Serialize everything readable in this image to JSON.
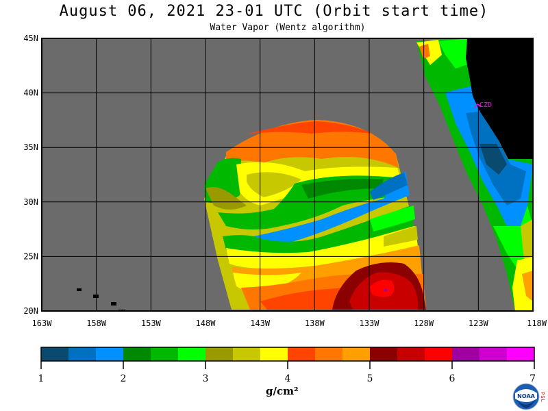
{
  "header": {
    "title": "August 06, 2021  23-01 UTC  (Orbit start time)",
    "subtitle": "Water Vapor (Wentz algorithm)"
  },
  "map": {
    "lat_labels": [
      "45N",
      "40N",
      "35N",
      "30N",
      "25N",
      "20N"
    ],
    "lon_labels": [
      "163W",
      "158W",
      "153W",
      "148W",
      "143W",
      "138W",
      "133W",
      "128W",
      "123W",
      "118W"
    ],
    "lat_range": [
      20,
      45
    ],
    "lon_range": [
      -163,
      -118
    ],
    "station_label": "CZD",
    "colors": {
      "ocean_nodata": "#6b6b6b",
      "land": "#000000",
      "station": "#ff00ff",
      "grid": "#000000"
    }
  },
  "colorbar": {
    "tick_labels": [
      "1",
      "2",
      "3",
      "4",
      "5",
      "6",
      "7"
    ],
    "unit": "g/cm²",
    "colors": [
      "#0a4a6e",
      "#0070c0",
      "#0090ff",
      "#008800",
      "#00b800",
      "#00ff00",
      "#999900",
      "#c8c800",
      "#ffff00",
      "#ff4400",
      "#ff7700",
      "#ffa000",
      "#8b0000",
      "#c80000",
      "#ff0000",
      "#a000a0",
      "#d000d0",
      "#ff00ff"
    ]
  },
  "logo": {
    "name": "NOAA",
    "side_letters": "PSL"
  }
}
